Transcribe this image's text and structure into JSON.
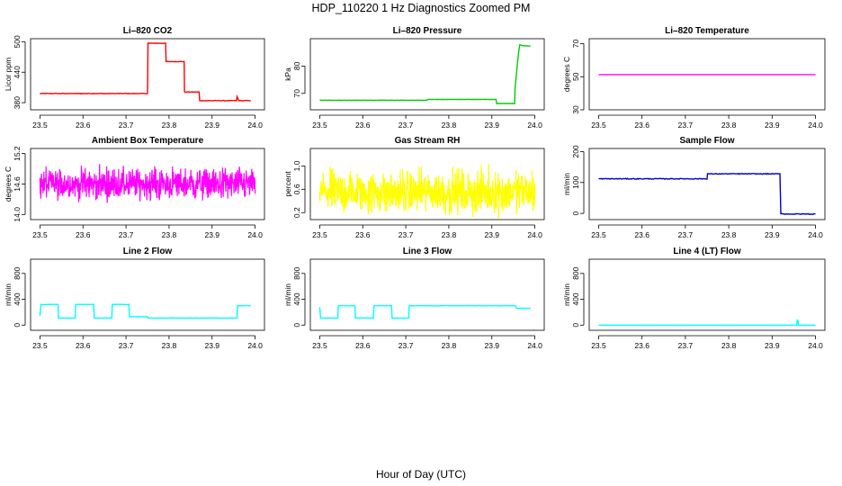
{
  "figure": {
    "title": "HDP_110220  1 Hz Diagnostics Zoomed PM",
    "xlabel": "Hour of Day (UTC)"
  },
  "chart_data": [
    {
      "type": "line",
      "title": "Li–820 CO2",
      "ylabel": "Licor ppm",
      "color": "#ff0000",
      "xlim": [
        23.5,
        24.0
      ],
      "ylim": [
        366,
        506
      ],
      "xticks": [
        23.5,
        23.6,
        23.7,
        23.8,
        23.9,
        24.0
      ],
      "xtick_labels": [
        "23.5",
        "23.6",
        "23.7",
        "23.8",
        "23.9",
        "24.0"
      ],
      "yticks": [
        380,
        440,
        500
      ],
      "ytick_labels": [
        "380",
        "440",
        "500"
      ],
      "noise": 1.0,
      "x": [
        23.5,
        23.75,
        23.751,
        23.792,
        23.793,
        23.835,
        23.836,
        23.87,
        23.871,
        23.957,
        23.958,
        23.962,
        23.963,
        23.99
      ],
      "y": [
        398,
        398,
        497,
        497,
        461,
        461,
        401,
        401,
        384,
        384,
        392,
        384,
        384,
        384
      ]
    },
    {
      "type": "line",
      "title": "Li–820 Pressure",
      "ylabel": "kPa",
      "color": "#00cd00",
      "xlim": [
        23.5,
        24.0
      ],
      "ylim": [
        64,
        90
      ],
      "xticks": [
        23.5,
        23.6,
        23.7,
        23.8,
        23.9,
        24.0
      ],
      "xtick_labels": [
        "23.5",
        "23.6",
        "23.7",
        "23.8",
        "23.9",
        "24.0"
      ],
      "yticks": [
        70,
        80
      ],
      "ytick_labels": [
        "70",
        "80"
      ],
      "noise": 0.1,
      "x": [
        23.5,
        23.75,
        23.751,
        23.91,
        23.911,
        23.953,
        23.954,
        23.96,
        23.963,
        23.965,
        23.97,
        23.99
      ],
      "y": [
        67.5,
        67.5,
        67.8,
        67.8,
        66.3,
        66.3,
        72,
        82,
        86,
        87.8,
        87.5,
        87.3
      ]
    },
    {
      "type": "line",
      "title": "Li–820 Temperature",
      "ylabel": "degrees C",
      "color": "#ff00ff",
      "xlim": [
        23.5,
        24.0
      ],
      "ylim": [
        30,
        73
      ],
      "xticks": [
        23.5,
        23.6,
        23.7,
        23.8,
        23.9,
        24.0
      ],
      "xtick_labels": [
        "23.5",
        "23.6",
        "23.7",
        "23.8",
        "23.9",
        "24.0"
      ],
      "yticks": [
        30,
        50,
        70
      ],
      "ytick_labels": [
        "30",
        "50",
        "70"
      ],
      "noise": 0,
      "x": [
        23.5,
        24.0
      ],
      "y": [
        51.3,
        51.3
      ]
    },
    {
      "type": "line",
      "title": "Ambient Box Temperature",
      "ylabel": "degrees C",
      "color": "#ff00ff",
      "xlim": [
        23.5,
        24.0
      ],
      "ylim": [
        13.9,
        15.3
      ],
      "xticks": [
        23.5,
        23.6,
        23.7,
        23.8,
        23.9,
        24.0
      ],
      "xtick_labels": [
        "23.5",
        "23.6",
        "23.7",
        "23.8",
        "23.9",
        "24.0"
      ],
      "yticks": [
        14.0,
        14.6,
        15.2
      ],
      "ytick_labels": [
        "14.0",
        "14.6",
        "15.2"
      ],
      "noisy": true,
      "base": 14.6,
      "spread": 0.5,
      "x": [
        23.5,
        24.0
      ],
      "y": [
        14.6,
        14.6
      ]
    },
    {
      "type": "line",
      "title": "Gas Stream RH",
      "ylabel": "percent",
      "color": "#ffff00",
      "xlim": [
        23.5,
        24.0
      ],
      "ylim": [
        0.08,
        1.3
      ],
      "xticks": [
        23.5,
        23.6,
        23.7,
        23.8,
        23.9,
        24.0
      ],
      "xtick_labels": [
        "23.5",
        "23.6",
        "23.7",
        "23.8",
        "23.9",
        "24.0"
      ],
      "yticks": [
        0.2,
        0.6,
        1.0
      ],
      "ytick_labels": [
        "0.2",
        "0.6",
        "1.0"
      ],
      "noisy": true,
      "base": 0.55,
      "spread": 0.6,
      "x": [
        23.5,
        24.0
      ],
      "y": [
        0.55,
        0.55
      ]
    },
    {
      "type": "line",
      "title": "Sample Flow",
      "ylabel": "ml/min",
      "color": "#0000cd",
      "xlim": [
        23.5,
        24.0
      ],
      "ylim": [
        -20,
        210
      ],
      "xticks": [
        23.5,
        23.6,
        23.7,
        23.8,
        23.9,
        24.0
      ],
      "xtick_labels": [
        "23.5",
        "23.6",
        "23.7",
        "23.8",
        "23.9",
        "24.0"
      ],
      "yticks": [
        0,
        100,
        200
      ],
      "ytick_labels": [
        "0",
        "100",
        "200"
      ],
      "noise": 2.5,
      "x": [
        23.5,
        23.75,
        23.751,
        23.918,
        23.92,
        23.93,
        24.0
      ],
      "y": [
        112,
        112,
        128,
        128,
        0,
        -2,
        -2
      ]
    },
    {
      "type": "line",
      "title": "Line 2 Flow",
      "ylabel": "ml/min",
      "color": "#00ffff",
      "xlim": [
        23.5,
        24.0
      ],
      "ylim": [
        -80,
        1020
      ],
      "xticks": [
        23.5,
        23.6,
        23.7,
        23.8,
        23.9,
        24.0
      ],
      "xtick_labels": [
        "23.5",
        "23.6",
        "23.7",
        "23.8",
        "23.9",
        "24.0"
      ],
      "yticks": [
        0,
        400,
        800
      ],
      "ytick_labels": [
        "0",
        "400",
        "800"
      ],
      "noise": 5,
      "x": [
        23.5,
        23.502,
        23.542,
        23.543,
        23.582,
        23.583,
        23.625,
        23.626,
        23.667,
        23.668,
        23.707,
        23.708,
        23.75,
        23.751,
        23.958,
        23.959,
        23.99
      ],
      "y": [
        140,
        320,
        320,
        110,
        110,
        320,
        320,
        110,
        110,
        320,
        320,
        130,
        130,
        110,
        110,
        300,
        300
      ]
    },
    {
      "type": "line",
      "title": "Line 3 Flow",
      "ylabel": "ml/min",
      "color": "#00ffff",
      "xlim": [
        23.5,
        24.0
      ],
      "ylim": [
        -80,
        1020
      ],
      "xticks": [
        23.5,
        23.6,
        23.7,
        23.8,
        23.9,
        24.0
      ],
      "xtick_labels": [
        "23.5",
        "23.6",
        "23.7",
        "23.8",
        "23.9",
        "24.0"
      ],
      "yticks": [
        0,
        400,
        800
      ],
      "ytick_labels": [
        "0",
        "400",
        "800"
      ],
      "noise": 5,
      "x": [
        23.5,
        23.502,
        23.542,
        23.543,
        23.582,
        23.583,
        23.625,
        23.626,
        23.667,
        23.668,
        23.707,
        23.708,
        23.955,
        23.957,
        23.99
      ],
      "y": [
        280,
        110,
        110,
        300,
        300,
        110,
        110,
        300,
        300,
        110,
        110,
        300,
        300,
        260,
        260
      ]
    },
    {
      "type": "line",
      "title": "Line 4 (LT) Flow",
      "ylabel": "ml/min",
      "color": "#00ffff",
      "xlim": [
        23.5,
        24.0
      ],
      "ylim": [
        -80,
        1020
      ],
      "xticks": [
        23.5,
        23.6,
        23.7,
        23.8,
        23.9,
        24.0
      ],
      "xtick_labels": [
        "23.5",
        "23.6",
        "23.7",
        "23.8",
        "23.9",
        "24.0"
      ],
      "yticks": [
        0,
        400,
        800
      ],
      "ytick_labels": [
        "0",
        "400",
        "800"
      ],
      "noise": 0,
      "x": [
        23.5,
        23.957,
        23.958,
        23.959,
        23.96,
        23.961,
        24.0
      ],
      "y": [
        0,
        0,
        90,
        20,
        70,
        0,
        0
      ]
    }
  ]
}
